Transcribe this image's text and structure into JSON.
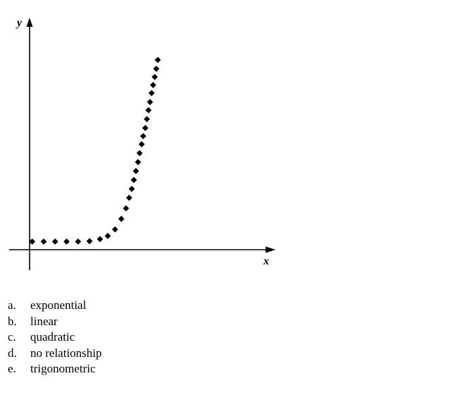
{
  "chart_data": {
    "type": "scatter",
    "xlabel": "x",
    "ylabel": "y",
    "xlim": [
      0,
      40
    ],
    "ylim": [
      0,
      30
    ],
    "x_ticks": [],
    "y_ticks": [],
    "grid": false,
    "legend": "none",
    "marker": "diamond",
    "color": "#000000",
    "series": [
      {
        "x": [
          0.5,
          2.7,
          4.9,
          7.1,
          9.3,
          11.5,
          13.5,
          15,
          16.4,
          17.6,
          18.5,
          19.1,
          19.6,
          20,
          20.4,
          20.8,
          21.1,
          21.5,
          21.8,
          22.2,
          22.5,
          22.8,
          23.1,
          23.4,
          23.7,
          24,
          24.3,
          24.6
        ],
        "y": [
          1.0,
          1.0,
          1.0,
          1.0,
          1.0,
          1.05,
          1.3,
          1.7,
          2.5,
          3.8,
          5.1,
          6.4,
          7.5,
          8.6,
          9.7,
          10.8,
          11.9,
          13.0,
          14.0,
          15.0,
          16.1,
          17.2,
          18.2,
          19.3,
          20.3,
          21.3,
          22.3,
          23.4
        ]
      }
    ]
  },
  "choices": [
    {
      "letter": "a.",
      "text": "exponential"
    },
    {
      "letter": "b.",
      "text": "linear"
    },
    {
      "letter": "c.",
      "text": "quadratic"
    },
    {
      "letter": "d.",
      "text": "no relationship"
    },
    {
      "letter": "e.",
      "text": "trigonometric"
    }
  ]
}
